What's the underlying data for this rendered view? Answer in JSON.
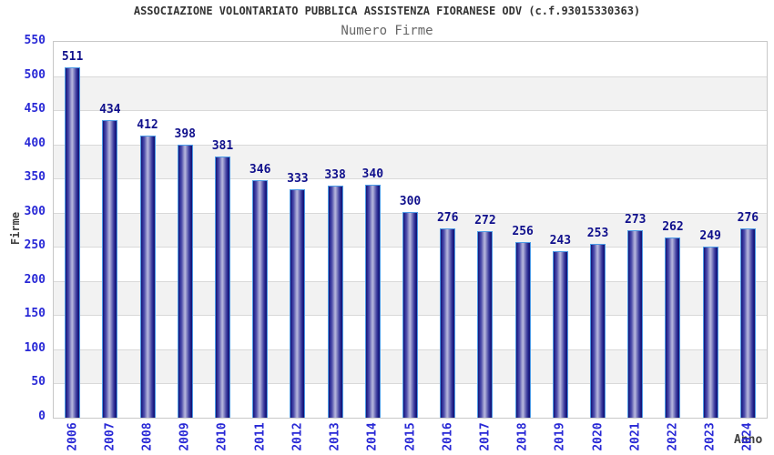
{
  "header": {
    "title": "ASSOCIAZIONE VOLONTARIATO PUBBLICA ASSISTENZA FIORANESE ODV (c.f.93015330363)",
    "subtitle": "Numero Firme"
  },
  "chart_data": {
    "type": "bar",
    "title": "Numero Firme",
    "categories": [
      "2006",
      "2007",
      "2008",
      "2009",
      "2010",
      "2011",
      "2012",
      "2013",
      "2014",
      "2015",
      "2016",
      "2017",
      "2018",
      "2019",
      "2020",
      "2021",
      "2022",
      "2023",
      "2024"
    ],
    "values": [
      511,
      434,
      412,
      398,
      381,
      346,
      333,
      338,
      340,
      300,
      276,
      272,
      256,
      243,
      253,
      273,
      262,
      249,
      276
    ],
    "xlabel": "Anno",
    "ylabel": "Firme",
    "ylim": [
      0,
      550
    ],
    "ytick_step": 50,
    "yticks": [
      0,
      50,
      100,
      150,
      200,
      250,
      300,
      350,
      400,
      450,
      500,
      550
    ],
    "grid": true,
    "legend_position": "none",
    "value_labels_shown": true,
    "x_tick_rotation_deg": 90
  },
  "colors": {
    "title": "#333333",
    "subtitle": "#666666",
    "tick_label": "#2929d6",
    "value_label": "#10108c",
    "axis_title": "#404040",
    "plot_border": "#c8c8c8",
    "grid_line": "#d9d9d9",
    "band_alt": "#f2f2f2",
    "bar_border": "#4d9be6",
    "bar_dark": "#14146e",
    "bar_light": "#b8b8de"
  }
}
